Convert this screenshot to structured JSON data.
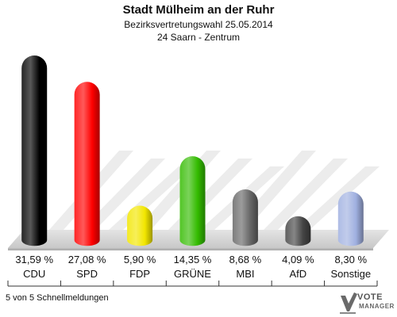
{
  "header": {
    "title": "Stadt Mülheim an der Ruhr",
    "subtitle": "Bezirksvertretungswahl 25.05.2014",
    "district": "24 Saarn - Zentrum"
  },
  "chart_data": {
    "type": "bar",
    "style": "3d-cylinder",
    "categories": [
      "CDU",
      "SPD",
      "FDP",
      "GRÜNE",
      "MBI",
      "AfD",
      "Sonstige"
    ],
    "values": [
      31.59,
      27.08,
      5.9,
      14.35,
      8.68,
      4.09,
      8.3
    ],
    "value_labels": [
      "31,59 %",
      "27,08 %",
      "5,90 %",
      "14,35 %",
      "8,68 %",
      "4,09 %",
      "8,30 %"
    ],
    "colors": [
      "#000000",
      "#ff0000",
      "#f2e600",
      "#33bb00",
      "#666666",
      "#444444",
      "#a0b0e0"
    ],
    "ylim": [
      0,
      35
    ],
    "grid": false,
    "legend": "none"
  },
  "footer": {
    "note": "5 von 5 Schnellmeldungen",
    "logo_line1": "VOTE",
    "logo_line2": "MANAGER"
  }
}
